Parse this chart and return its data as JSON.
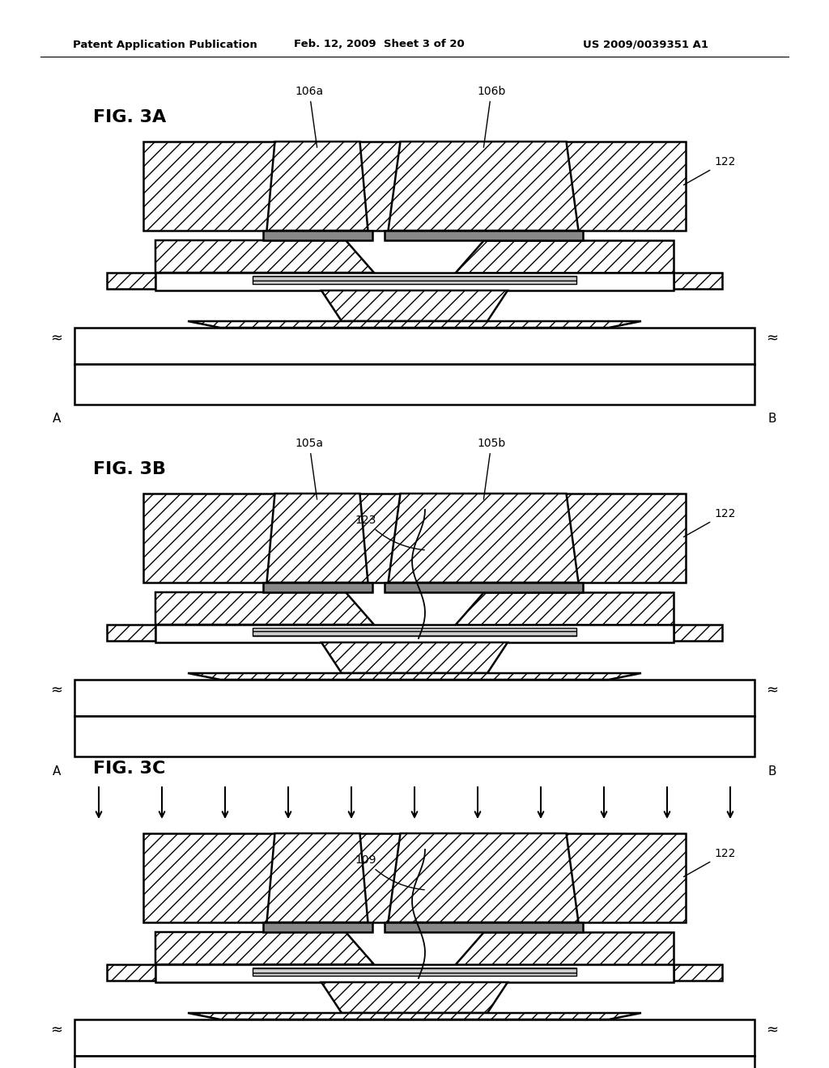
{
  "background_color": "#ffffff",
  "header_left": "Patent Application Publication",
  "header_center": "Feb. 12, 2009  Sheet 3 of 20",
  "header_right": "US 2009/0039351 A1",
  "fig3a": {
    "label": "FIG. 3A",
    "elec_labels": [
      "106a",
      "106b"
    ],
    "layer_label": "122",
    "has_crack": false,
    "crack_label": "",
    "has_arrows": false
  },
  "fig3b": {
    "label": "FIG. 3B",
    "elec_labels": [
      "105a",
      "105b"
    ],
    "layer_label": "122",
    "crack_label": "123",
    "has_crack": true,
    "has_arrows": false
  },
  "fig3c": {
    "label": "FIG. 3C",
    "elec_labels": [],
    "layer_label": "122",
    "crack_label": "109",
    "has_crack": true,
    "has_arrows": true
  }
}
